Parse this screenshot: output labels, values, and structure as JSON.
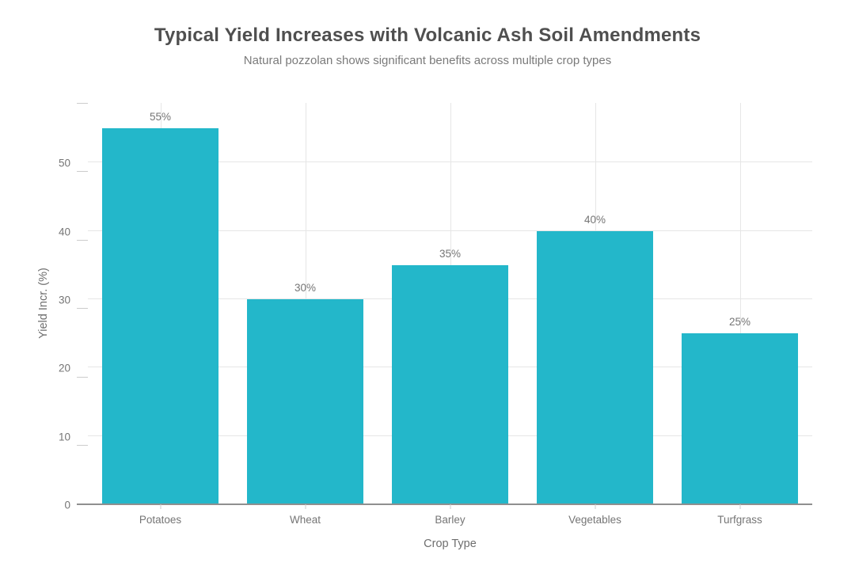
{
  "chart_data": {
    "type": "bar",
    "title": "Typical Yield Increases with Volcanic Ash Soil Amendments",
    "subtitle": "Natural pozzolan shows significant benefits across multiple crop types",
    "xlabel": "Crop Type",
    "ylabel": "Yield Incr. (%)",
    "categories": [
      "Potatoes",
      "Wheat",
      "Barley",
      "Vegetables",
      "Turfgrass"
    ],
    "values": [
      55,
      30,
      35,
      40,
      25
    ],
    "value_labels": [
      "55%",
      "30%",
      "35%",
      "40%",
      "25%"
    ],
    "yticks": [
      0,
      10,
      20,
      30,
      40,
      50
    ],
    "ylim": [
      0,
      58.7
    ],
    "grid": "horizontal and vertical, light gray",
    "legend": "none",
    "colors": {
      "bar": "#23b7ca",
      "grid": "#e6e6e6",
      "axis_line": "#8f8f8f",
      "tick_mark": "#cccccc",
      "tick_label": "#757575",
      "title": "#4f4f4f",
      "subtitle": "#7a7a7a",
      "value_label": "#757575",
      "background": "#ffffff"
    }
  }
}
